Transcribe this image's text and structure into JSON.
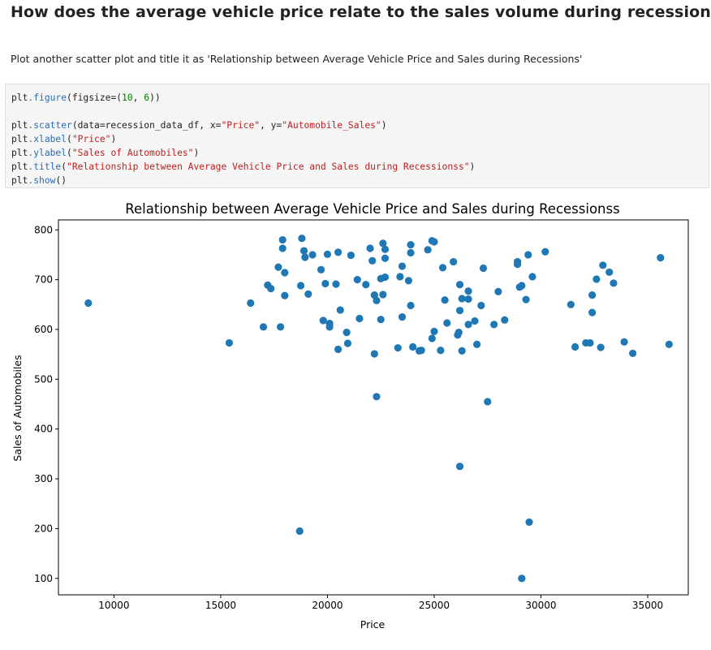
{
  "cell": {
    "heading": "How does the average vehicle price relate to the sales volume during recessions?",
    "instruction": "Plot another scatter plot and title it as 'Relationship between Average Vehicle Price and Sales during Recessions'",
    "code_lines": [
      [
        {
          "t": "plt",
          "c": "obj"
        },
        {
          "t": ".",
          "c": "op"
        },
        {
          "t": "figure",
          "c": "fn"
        },
        {
          "t": "(figsize=(",
          "c": "obj"
        },
        {
          "t": "10",
          "c": "num"
        },
        {
          "t": ", ",
          "c": "obj"
        },
        {
          "t": "6",
          "c": "num"
        },
        {
          "t": "))",
          "c": "obj"
        }
      ],
      [],
      [
        {
          "t": "plt",
          "c": "obj"
        },
        {
          "t": ".",
          "c": "op"
        },
        {
          "t": "scatter",
          "c": "fn"
        },
        {
          "t": "(data=recession_data_df, x=",
          "c": "obj"
        },
        {
          "t": "\"Price\"",
          "c": "str"
        },
        {
          "t": ", y=",
          "c": "obj"
        },
        {
          "t": "\"Automobile_Sales\"",
          "c": "str"
        },
        {
          "t": ")",
          "c": "obj"
        }
      ],
      [
        {
          "t": "plt",
          "c": "obj"
        },
        {
          "t": ".",
          "c": "op"
        },
        {
          "t": "xlabel",
          "c": "fn"
        },
        {
          "t": "(",
          "c": "obj"
        },
        {
          "t": "\"Price\"",
          "c": "str"
        },
        {
          "t": ")",
          "c": "obj"
        }
      ],
      [
        {
          "t": "plt",
          "c": "obj"
        },
        {
          "t": ".",
          "c": "op"
        },
        {
          "t": "ylabel",
          "c": "fn"
        },
        {
          "t": "(",
          "c": "obj"
        },
        {
          "t": "\"Sales of Automobiles\"",
          "c": "str"
        },
        {
          "t": ")",
          "c": "obj"
        }
      ],
      [
        {
          "t": "plt",
          "c": "obj"
        },
        {
          "t": ".",
          "c": "op"
        },
        {
          "t": "title",
          "c": "fn"
        },
        {
          "t": "(",
          "c": "obj"
        },
        {
          "t": "\"Relationship between Average Vehicle Price and Sales during Recessionss\"",
          "c": "str"
        },
        {
          "t": ")",
          "c": "obj"
        }
      ],
      [
        {
          "t": "plt",
          "c": "obj"
        },
        {
          "t": ".",
          "c": "op"
        },
        {
          "t": "show",
          "c": "fn"
        },
        {
          "t": "()",
          "c": "obj"
        }
      ]
    ]
  },
  "colors": {
    "marker": "#1f77b4",
    "axis": "#000000"
  },
  "chart_data": {
    "type": "scatter",
    "title": "Relationship between Average Vehicle Price and Sales during Recessionss",
    "xlabel": "Price",
    "ylabel": "Sales of Automobiles",
    "xlim": [
      7400,
      36900
    ],
    "ylim": [
      67,
      820
    ],
    "xticks": [
      10000,
      15000,
      20000,
      25000,
      30000,
      35000
    ],
    "yticks": [
      100,
      200,
      300,
      400,
      500,
      600,
      700,
      800
    ],
    "grid": false,
    "points": [
      [
        8800,
        653
      ],
      [
        15400,
        573
      ],
      [
        16400,
        653
      ],
      [
        17000,
        605
      ],
      [
        17200,
        689
      ],
      [
        17350,
        682
      ],
      [
        17700,
        725
      ],
      [
        17800,
        605
      ],
      [
        17900,
        763
      ],
      [
        17900,
        780
      ],
      [
        18000,
        714
      ],
      [
        18000,
        668
      ],
      [
        18700,
        195
      ],
      [
        18750,
        688
      ],
      [
        18800,
        783
      ],
      [
        18900,
        758
      ],
      [
        18950,
        745
      ],
      [
        19100,
        671
      ],
      [
        19300,
        750
      ],
      [
        19700,
        720
      ],
      [
        19800,
        618
      ],
      [
        19900,
        692
      ],
      [
        20000,
        751
      ],
      [
        20100,
        612
      ],
      [
        20100,
        605
      ],
      [
        20400,
        691
      ],
      [
        20500,
        560
      ],
      [
        20500,
        755
      ],
      [
        20600,
        639
      ],
      [
        20900,
        594
      ],
      [
        20950,
        572
      ],
      [
        21100,
        749
      ],
      [
        21400,
        700
      ],
      [
        21500,
        622
      ],
      [
        21800,
        690
      ],
      [
        22000,
        763
      ],
      [
        22100,
        738
      ],
      [
        22200,
        551
      ],
      [
        22200,
        669
      ],
      [
        22300,
        658
      ],
      [
        22300,
        465
      ],
      [
        22500,
        702
      ],
      [
        22500,
        620
      ],
      [
        22600,
        670
      ],
      [
        22600,
        773
      ],
      [
        22700,
        743
      ],
      [
        22700,
        761
      ],
      [
        22700,
        705
      ],
      [
        23300,
        563
      ],
      [
        23400,
        706
      ],
      [
        23500,
        625
      ],
      [
        23500,
        727
      ],
      [
        23800,
        698
      ],
      [
        23900,
        770
      ],
      [
        23900,
        754
      ],
      [
        23900,
        648
      ],
      [
        24000,
        565
      ],
      [
        24300,
        557
      ],
      [
        24400,
        558
      ],
      [
        24700,
        760
      ],
      [
        24900,
        778
      ],
      [
        25000,
        776
      ],
      [
        24900,
        582
      ],
      [
        25000,
        596
      ],
      [
        25300,
        558
      ],
      [
        25400,
        724
      ],
      [
        25500,
        659
      ],
      [
        25600,
        613
      ],
      [
        25900,
        736
      ],
      [
        26100,
        589
      ],
      [
        26150,
        594
      ],
      [
        26200,
        325
      ],
      [
        26200,
        690
      ],
      [
        26200,
        638
      ],
      [
        26300,
        557
      ],
      [
        26300,
        662
      ],
      [
        26600,
        677
      ],
      [
        26600,
        661
      ],
      [
        26600,
        610
      ],
      [
        26900,
        617
      ],
      [
        27000,
        570
      ],
      [
        27200,
        648
      ],
      [
        27300,
        723
      ],
      [
        27500,
        455
      ],
      [
        27800,
        610
      ],
      [
        28000,
        676
      ],
      [
        28300,
        619
      ],
      [
        28900,
        736
      ],
      [
        28900,
        731
      ],
      [
        29000,
        685
      ],
      [
        29100,
        688
      ],
      [
        29100,
        100
      ],
      [
        29300,
        660
      ],
      [
        29400,
        750
      ],
      [
        29450,
        213
      ],
      [
        29600,
        706
      ],
      [
        30200,
        756
      ],
      [
        31400,
        650
      ],
      [
        31600,
        565
      ],
      [
        32100,
        573
      ],
      [
        32300,
        573
      ],
      [
        32400,
        669
      ],
      [
        32400,
        634
      ],
      [
        32600,
        701
      ],
      [
        32800,
        564
      ],
      [
        32900,
        729
      ],
      [
        33200,
        715
      ],
      [
        33400,
        693
      ],
      [
        33900,
        575
      ],
      [
        34300,
        552
      ],
      [
        35600,
        744
      ],
      [
        36000,
        570
      ]
    ]
  }
}
